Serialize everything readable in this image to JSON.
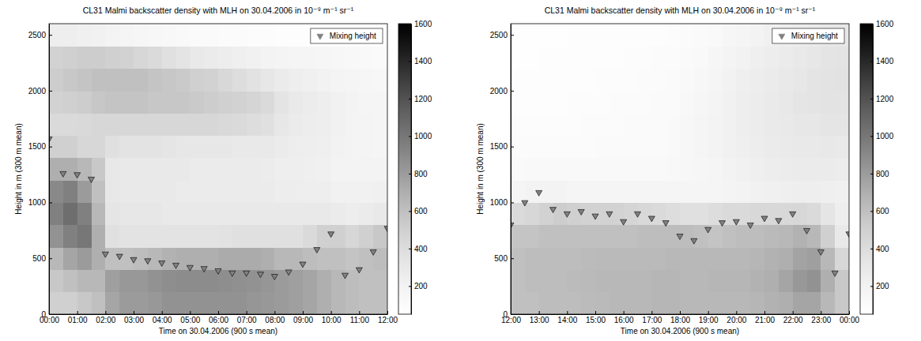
{
  "chart_data": [
    {
      "type": "heatmap",
      "title": "CL31 Malmi backscatter density with MLH on 30.04.2006 in 10⁻⁹ m⁻¹ sr⁻¹",
      "xlabel": "Time on 30.04.2006 (900 s mean)",
      "ylabel": "Height in m (300 m mean)",
      "xlim": [
        0,
        12
      ],
      "xticks": [
        {
          "value": 0,
          "label": "00:00"
        },
        {
          "value": 1,
          "label": "01:00"
        },
        {
          "value": 2,
          "label": "02:00"
        },
        {
          "value": 3,
          "label": "03:00"
        },
        {
          "value": 4,
          "label": "04:00"
        },
        {
          "value": 5,
          "label": "05:00"
        },
        {
          "value": 6,
          "label": "06:00"
        },
        {
          "value": 7,
          "label": "07:00"
        },
        {
          "value": 8,
          "label": "08:00"
        },
        {
          "value": 9,
          "label": "09:00"
        },
        {
          "value": 10,
          "label": "10:00"
        },
        {
          "value": 11,
          "label": "11:00"
        },
        {
          "value": 12,
          "label": "12:00"
        }
      ],
      "ylim": [
        0,
        2600
      ],
      "yticks": [
        0,
        500,
        1000,
        1500,
        2000,
        2500
      ],
      "x": [
        0,
        0.5,
        1,
        1.5,
        2,
        2.5,
        3,
        3.5,
        4,
        4.5,
        5,
        5.5,
        6,
        6.5,
        7,
        7.5,
        8,
        8.5,
        9,
        9.5,
        10,
        10.5,
        11,
        11.5
      ],
      "y": [
        0,
        200,
        400,
        600,
        800,
        1000,
        1200,
        1400,
        1600,
        1800,
        2000,
        2200,
        2400
      ],
      "cells": [
        [
          500,
          500,
          550,
          600,
          750,
          800,
          800,
          820,
          850,
          850,
          850,
          850,
          850,
          850,
          830,
          820,
          800,
          780,
          750,
          700,
          650,
          620,
          600,
          600
        ],
        [
          550,
          600,
          650,
          650,
          780,
          820,
          820,
          850,
          870,
          880,
          880,
          880,
          870,
          860,
          850,
          830,
          800,
          780,
          750,
          700,
          650,
          620,
          600,
          600
        ],
        [
          650,
          750,
          800,
          700,
          600,
          600,
          620,
          650,
          680,
          700,
          700,
          700,
          720,
          720,
          720,
          700,
          650,
          650,
          620,
          600,
          600,
          580,
          600,
          620
        ],
        [
          850,
          950,
          1000,
          700,
          380,
          350,
          350,
          350,
          350,
          350,
          350,
          350,
          360,
          380,
          380,
          380,
          380,
          380,
          420,
          500,
          500,
          450,
          500,
          550
        ],
        [
          950,
          1050,
          950,
          650,
          330,
          320,
          320,
          320,
          300,
          300,
          300,
          300,
          300,
          300,
          300,
          300,
          300,
          300,
          300,
          300,
          280,
          260,
          280,
          300
        ],
        [
          900,
          950,
          800,
          600,
          320,
          300,
          300,
          300,
          300,
          280,
          280,
          280,
          280,
          280,
          280,
          280,
          260,
          260,
          250,
          250,
          220,
          220,
          220,
          230
        ],
        [
          700,
          700,
          650,
          550,
          320,
          300,
          300,
          300,
          300,
          300,
          280,
          280,
          280,
          280,
          280,
          270,
          250,
          250,
          240,
          230,
          200,
          200,
          200,
          200
        ],
        [
          500,
          500,
          450,
          450,
          380,
          350,
          350,
          350,
          330,
          320,
          320,
          320,
          320,
          300,
          300,
          300,
          280,
          260,
          250,
          240,
          210,
          200,
          190,
          180
        ],
        [
          420,
          420,
          430,
          450,
          450,
          450,
          450,
          450,
          450,
          450,
          450,
          450,
          430,
          420,
          400,
          380,
          320,
          280,
          260,
          250,
          220,
          200,
          190,
          180
        ],
        [
          480,
          500,
          520,
          560,
          580,
          580,
          580,
          560,
          560,
          560,
          540,
          520,
          500,
          480,
          460,
          420,
          340,
          300,
          270,
          250,
          220,
          200,
          180,
          170
        ],
        [
          520,
          550,
          580,
          600,
          600,
          600,
          600,
          580,
          560,
          540,
          500,
          480,
          440,
          400,
          360,
          320,
          280,
          250,
          230,
          210,
          190,
          170,
          160,
          150
        ],
        [
          480,
          500,
          520,
          520,
          500,
          480,
          450,
          420,
          380,
          340,
          300,
          280,
          260,
          240,
          220,
          200,
          190,
          180,
          170,
          160,
          150,
          140,
          130,
          120
        ],
        [
          250,
          250,
          230,
          220,
          200,
          180,
          160,
          150,
          140,
          130,
          120,
          110,
          100,
          100,
          90,
          90,
          80,
          80,
          80,
          80,
          70,
          70,
          70,
          70
        ]
      ],
      "colorbar": {
        "range": [
          50,
          1600
        ],
        "ticks": [
          200,
          400,
          600,
          800,
          1000,
          1200,
          1400,
          1600
        ]
      },
      "series": [
        {
          "name": "Mixing height",
          "type": "scatter",
          "marker": "triangle-down",
          "color": "#808080",
          "x": [
            0,
            0.5,
            1,
            1.5,
            2,
            2.5,
            3,
            3.5,
            4,
            4.5,
            5,
            5.5,
            6,
            6.5,
            7,
            7.5,
            8,
            8.5,
            9,
            9.5,
            10,
            10.5,
            11,
            11.5,
            12
          ],
          "values": [
            1570,
            1260,
            1250,
            1210,
            540,
            520,
            490,
            480,
            460,
            440,
            420,
            410,
            390,
            370,
            370,
            360,
            340,
            380,
            450,
            580,
            720,
            350,
            400,
            560,
            770
          ]
        }
      ],
      "legend": "upper right"
    },
    {
      "type": "heatmap",
      "title": "CL31 Malmi backscatter density with MLH on 30.04.2006 in 10⁻⁹ m⁻¹ sr⁻¹",
      "xlabel": "Time on 30.04.2006 (900 s mean)",
      "ylabel": "Height in m (300 m mean)",
      "xlim": [
        12,
        24
      ],
      "xticks": [
        {
          "value": 12,
          "label": "12:00"
        },
        {
          "value": 13,
          "label": "13:00"
        },
        {
          "value": 14,
          "label": "14:00"
        },
        {
          "value": 15,
          "label": "15:00"
        },
        {
          "value": 16,
          "label": "16:00"
        },
        {
          "value": 17,
          "label": "17:00"
        },
        {
          "value": 18,
          "label": "18:00"
        },
        {
          "value": 19,
          "label": "19:00"
        },
        {
          "value": 20,
          "label": "20:00"
        },
        {
          "value": 21,
          "label": "21:00"
        },
        {
          "value": 22,
          "label": "22:00"
        },
        {
          "value": 23,
          "label": "23:00"
        },
        {
          "value": 24,
          "label": "00:00"
        }
      ],
      "ylim": [
        0,
        2600
      ],
      "yticks": [
        0,
        500,
        1000,
        1500,
        2000,
        2500
      ],
      "x": [
        12,
        12.5,
        13,
        13.5,
        14,
        14.5,
        15,
        15.5,
        16,
        16.5,
        17,
        17.5,
        18,
        18.5,
        19,
        19.5,
        20,
        20.5,
        21,
        21.5,
        22,
        22.5,
        23,
        23.5
      ],
      "y": [
        0,
        200,
        400,
        600,
        800,
        1000,
        1200,
        1400,
        1600,
        1800,
        2000,
        2200,
        2400
      ],
      "cells": [
        [
          600,
          600,
          620,
          620,
          620,
          630,
          640,
          650,
          650,
          650,
          660,
          660,
          650,
          650,
          650,
          650,
          650,
          660,
          680,
          700,
          750,
          750,
          650,
          550
        ],
        [
          600,
          620,
          620,
          620,
          630,
          640,
          650,
          650,
          650,
          650,
          660,
          660,
          650,
          650,
          660,
          660,
          660,
          680,
          700,
          750,
          820,
          850,
          700,
          550
        ],
        [
          600,
          620,
          620,
          620,
          620,
          630,
          640,
          640,
          640,
          640,
          640,
          650,
          650,
          650,
          650,
          650,
          650,
          660,
          680,
          700,
          760,
          780,
          650,
          450
        ],
        [
          580,
          580,
          600,
          600,
          600,
          600,
          600,
          600,
          600,
          620,
          620,
          620,
          620,
          600,
          580,
          600,
          620,
          620,
          640,
          650,
          680,
          650,
          500,
          300
        ],
        [
          420,
          450,
          480,
          520,
          500,
          480,
          480,
          480,
          460,
          440,
          420,
          400,
          380,
          380,
          400,
          420,
          420,
          440,
          440,
          440,
          450,
          420,
          330,
          250
        ],
        [
          180,
          200,
          200,
          200,
          180,
          170,
          170,
          170,
          170,
          170,
          170,
          170,
          170,
          170,
          180,
          190,
          200,
          220,
          230,
          240,
          250,
          250,
          240,
          230
        ],
        [
          120,
          130,
          130,
          130,
          130,
          130,
          130,
          130,
          130,
          130,
          130,
          140,
          150,
          160,
          180,
          200,
          220,
          240,
          260,
          270,
          280,
          280,
          280,
          270
        ],
        [
          100,
          100,
          100,
          100,
          100,
          100,
          110,
          110,
          110,
          120,
          120,
          130,
          150,
          170,
          200,
          220,
          240,
          260,
          280,
          290,
          300,
          300,
          310,
          300
        ],
        [
          90,
          90,
          90,
          90,
          90,
          100,
          100,
          100,
          110,
          110,
          120,
          130,
          150,
          170,
          200,
          220,
          250,
          270,
          290,
          300,
          320,
          320,
          330,
          330
        ],
        [
          80,
          80,
          80,
          80,
          90,
          90,
          90,
          100,
          100,
          100,
          110,
          120,
          140,
          160,
          190,
          220,
          250,
          270,
          290,
          310,
          330,
          340,
          350,
          350
        ],
        [
          70,
          70,
          70,
          80,
          80,
          80,
          90,
          90,
          90,
          100,
          100,
          110,
          130,
          150,
          180,
          210,
          240,
          260,
          280,
          300,
          320,
          340,
          350,
          360
        ],
        [
          60,
          60,
          70,
          70,
          70,
          80,
          80,
          80,
          90,
          90,
          100,
          100,
          110,
          130,
          160,
          190,
          210,
          240,
          260,
          280,
          300,
          320,
          340,
          350
        ],
        [
          60,
          60,
          60,
          60,
          70,
          70,
          70,
          70,
          70,
          80,
          80,
          90,
          100,
          110,
          130,
          160,
          180,
          200,
          230,
          250,
          270,
          290,
          310,
          320
        ]
      ],
      "colorbar": {
        "range": [
          50,
          1600
        ],
        "ticks": [
          200,
          400,
          600,
          800,
          1000,
          1200,
          1400,
          1600
        ]
      },
      "series": [
        {
          "name": "Mixing height",
          "type": "scatter",
          "marker": "triangle-down",
          "color": "#808080",
          "x": [
            12,
            12.5,
            13,
            13.5,
            14,
            14.5,
            15,
            15.5,
            16,
            16.5,
            17,
            17.5,
            18,
            18.5,
            19,
            19.5,
            20,
            20.5,
            21,
            21.5,
            22,
            22.5,
            23,
            23.5,
            24
          ],
          "values": [
            800,
            1000,
            1090,
            940,
            900,
            920,
            880,
            900,
            830,
            900,
            860,
            820,
            700,
            660,
            760,
            820,
            830,
            800,
            860,
            840,
            900,
            750,
            560,
            370,
            720
          ]
        }
      ],
      "legend": "upper right"
    }
  ]
}
